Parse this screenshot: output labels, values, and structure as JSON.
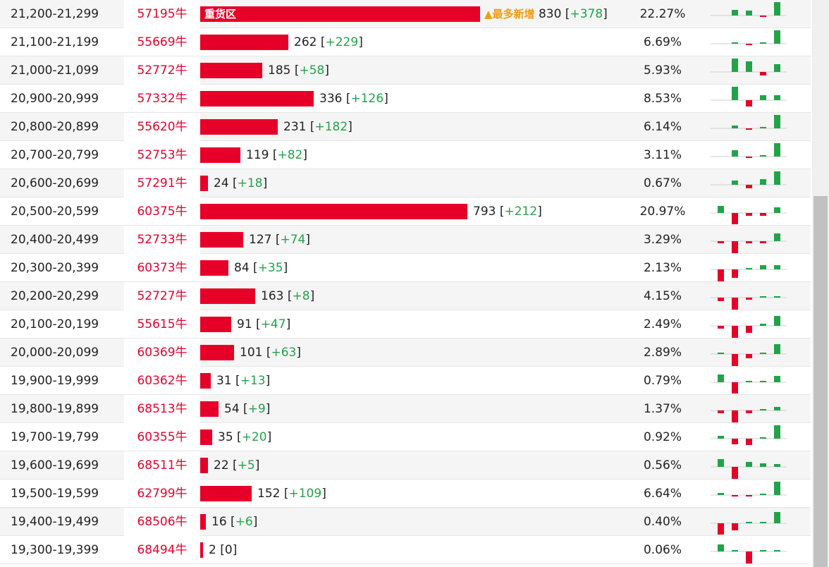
{
  "colors": {
    "bar": "#e60028",
    "code": "#e6002d",
    "delta": "#22a34a",
    "badge": "#f39c12",
    "spark_up": "#22a34a",
    "spark_down": "#e60028"
  },
  "icons": {
    "badge_icon": "triangle-up-icon"
  },
  "rows": [
    {
      "range": "21,200-21,299",
      "code": "57195牛",
      "count": "830",
      "delta": "+378",
      "pct": "22.27%",
      "bar_label": "重货区",
      "badge": "▲最多新增",
      "spark": [
        0.4,
        0.35,
        -0.1,
        0.95
      ]
    },
    {
      "range": "21,100-21,199",
      "code": "55669牛",
      "count": "262",
      "delta": "+229",
      "pct": "6.69%",
      "spark": [
        0.1,
        -0.05,
        0.1,
        0.95
      ]
    },
    {
      "range": "21,000-21,099",
      "code": "52772牛",
      "count": "185",
      "delta": "+58",
      "pct": "5.93%",
      "spark": [
        0.95,
        0.75,
        -0.25,
        0.55
      ]
    },
    {
      "range": "20,900-20,999",
      "code": "57332牛",
      "count": "336",
      "delta": "+126",
      "pct": "8.53%",
      "spark": [
        0.95,
        -0.5,
        0.35,
        0.35
      ]
    },
    {
      "range": "20,800-20,899",
      "code": "55620牛",
      "count": "231",
      "delta": "+182",
      "pct": "6.14%",
      "spark": [
        0.2,
        -0.05,
        0.1,
        0.95
      ]
    },
    {
      "range": "20,700-20,799",
      "code": "52753牛",
      "count": "119",
      "delta": "+82",
      "pct": "3.11%",
      "spark": [
        0.45,
        -0.05,
        0.1,
        0.95
      ]
    },
    {
      "range": "20,600-20,699",
      "code": "57291牛",
      "count": "24",
      "delta": "+18",
      "pct": "0.67%",
      "spark": [
        0.3,
        -0.25,
        0.4,
        0.95
      ]
    },
    {
      "range": "20,500-20,599",
      "code": "60375牛",
      "count": "793",
      "delta": "+212",
      "pct": "20.97%",
      "spark": [
        0.5,
        -0.9,
        -0.2,
        -0.2,
        0.4
      ]
    },
    {
      "range": "20,400-20,499",
      "code": "52733牛",
      "count": "127",
      "delta": "+74",
      "pct": "3.29%",
      "spark": [
        -0.15,
        -0.95,
        -0.15,
        -0.15,
        0.55
      ]
    },
    {
      "range": "20,300-20,399",
      "code": "60373牛",
      "count": "84",
      "delta": "+35",
      "pct": "2.13%",
      "spark": [
        -0.95,
        -0.65,
        0.1,
        0.3,
        0.3
      ]
    },
    {
      "range": "20,200-20,299",
      "code": "52727牛",
      "count": "163",
      "delta": "+8",
      "pct": "4.15%",
      "spark": [
        -0.3,
        -0.95,
        -0.15,
        0.05,
        0.05
      ]
    },
    {
      "range": "20,100-20,199",
      "code": "55615牛",
      "count": "91",
      "delta": "+47",
      "pct": "2.49%",
      "spark": [
        -0.2,
        -0.95,
        -0.55,
        0.15,
        0.7
      ]
    },
    {
      "range": "20,000-20,099",
      "code": "60369牛",
      "count": "101",
      "delta": "+63",
      "pct": "2.89%",
      "spark": [
        0.1,
        -0.95,
        -0.35,
        0.1,
        0.7
      ]
    },
    {
      "range": "19,900-19,999",
      "code": "60362牛",
      "count": "31",
      "delta": "+13",
      "pct": "0.79%",
      "spark": [
        0.55,
        -0.9,
        0.1,
        0.0,
        0.45
      ]
    },
    {
      "range": "19,800-19,899",
      "code": "68513牛",
      "count": "54",
      "delta": "+9",
      "pct": "1.37%",
      "spark": [
        -0.2,
        -0.95,
        -0.2,
        0.0,
        0.25
      ]
    },
    {
      "range": "19,700-19,799",
      "code": "60355牛",
      "count": "35",
      "delta": "+20",
      "pct": "0.92%",
      "spark": [
        0.2,
        -0.45,
        -0.5,
        0.05,
        0.95
      ]
    },
    {
      "range": "19,600-19,699",
      "code": "68511牛",
      "count": "22",
      "delta": "+5",
      "pct": "0.56%",
      "spark": [
        0.55,
        -0.95,
        0.35,
        0.25,
        0.2
      ]
    },
    {
      "range": "19,500-19,599",
      "code": "62799牛",
      "count": "152",
      "delta": "+109",
      "pct": "6.64%",
      "spark": [
        0.15,
        -0.1,
        -0.1,
        0.1,
        0.95
      ]
    },
    {
      "range": "19,400-19,499",
      "code": "68506牛",
      "count": "16",
      "delta": "+6",
      "pct": "0.40%",
      "spark": [
        -0.9,
        -0.55,
        0.0,
        0.0,
        0.8
      ]
    },
    {
      "range": "19,300-19,399",
      "code": "68494牛",
      "count": "2",
      "delta": "0",
      "pct": "0.06%",
      "spark": [
        0.5,
        0.0,
        -0.95,
        0.0,
        0.0
      ]
    }
  ]
}
